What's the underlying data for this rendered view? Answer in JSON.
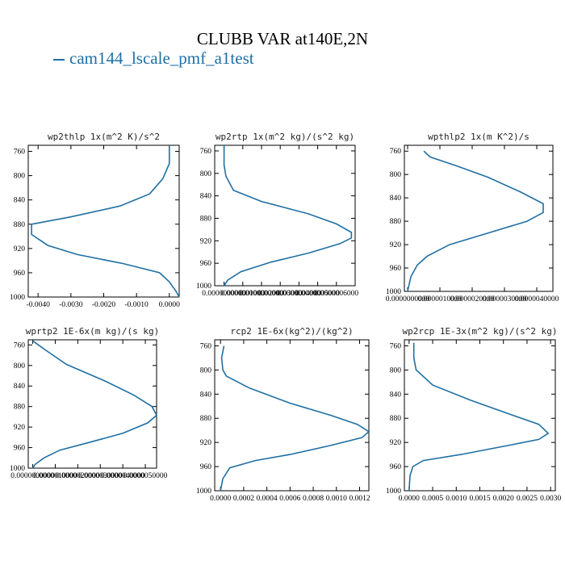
{
  "figure": {
    "title": "CLUBB VAR at140E,2N",
    "legend_label": "cam144_lscale_pmf_a1test",
    "series_color": "#1f6fa3"
  },
  "chart_data": [
    {
      "type": "line",
      "title": "wp2thlp  1x(m^2 K)/s^2",
      "xlim": [
        -0.0043,
        0.0003
      ],
      "ylim": [
        1000,
        750
      ],
      "xticks": [
        -0.004,
        -0.003,
        -0.002,
        -0.001,
        0.0
      ],
      "xtick_labels": [
        "-0.0040",
        "-0.0030",
        "-0.0020",
        "-0.0010",
        "0.0000"
      ],
      "yticks": [
        760,
        800,
        840,
        880,
        920,
        960,
        1000
      ],
      "ytick_labels": [
        "760",
        "800",
        "840",
        "880",
        "920",
        "960",
        "1000"
      ],
      "series": [
        {
          "x": [
            -0.0,
            -0.0,
            -0.0002,
            -0.0006,
            -0.0015,
            -0.003,
            -0.0042,
            -0.0042,
            -0.0037,
            -0.0028,
            -0.0014,
            -0.0003,
            0.0,
            0.0002,
            0.0003
          ],
          "y": [
            750,
            780,
            805,
            830,
            850,
            868,
            880,
            897,
            915,
            930,
            945,
            960,
            975,
            990,
            1000
          ]
        }
      ]
    },
    {
      "type": "line",
      "title": "wp2rtp  1x(m^2 kg)/(s^2 kg)",
      "xlim": [
        -5e-08,
        7e-07
      ],
      "ylim": [
        1000,
        750
      ],
      "xticks": [
        0.0,
        1e-07,
        2e-07,
        3e-07,
        4e-07,
        5e-07,
        6e-07
      ],
      "xtick_labels": [
        "0.0000000000",
        "0.0000001000",
        "0.0000002000",
        "0.0000003000",
        "0.0000004000",
        "0.0000005000",
        "0.0000006000"
      ],
      "yticks": [
        760,
        800,
        840,
        880,
        920,
        960,
        1000
      ],
      "ytick_labels": [
        "760",
        "800",
        "840",
        "880",
        "920",
        "960",
        "1000"
      ],
      "series": [
        {
          "x": [
            0.0,
            0.0,
            1e-08,
            5e-08,
            2e-07,
            4.5e-07,
            6e-07,
            6.8e-07,
            6.8e-07,
            6.2e-07,
            4.5e-07,
            2.5e-07,
            9e-08,
            2e-08,
            0.0
          ],
          "y": [
            750,
            785,
            805,
            830,
            850,
            872,
            890,
            905,
            915,
            925,
            942,
            958,
            975,
            990,
            1000
          ]
        }
      ]
    },
    {
      "type": "line",
      "title": "wpthlp2  1x(m K^2)/s",
      "xlim": [
        -1e-07,
        4.5e-06
      ],
      "ylim": [
        1000,
        750
      ],
      "xticks": [
        0.0,
        1e-06,
        2e-06,
        3e-06,
        4e-06
      ],
      "xtick_labels": [
        "0.0000000000",
        "0.0000010000",
        "0.0000020000",
        "0.0000030000",
        "0.0000040000"
      ],
      "yticks": [
        760,
        800,
        840,
        880,
        920,
        960,
        1000
      ],
      "ytick_labels": [
        "760",
        "800",
        "840",
        "880",
        "920",
        "960",
        "1000"
      ],
      "series": [
        {
          "x": [
            5e-07,
            7e-07,
            1.5e-06,
            2.5e-06,
            3.5e-06,
            4.2e-06,
            4.2e-06,
            3.7e-06,
            2.5e-06,
            1.3e-06,
            6e-07,
            3e-07,
            1e-07,
            0.0
          ],
          "y": [
            760,
            770,
            785,
            805,
            830,
            850,
            865,
            880,
            900,
            920,
            940,
            955,
            975,
            1000
          ]
        }
      ]
    },
    {
      "type": "line",
      "title": "wprtp2  1E-6x(m kg)/(s kg)",
      "xlim": [
        -2e-07,
        5.5e-06
      ],
      "ylim": [
        1000,
        750
      ],
      "xticks": [
        0.0,
        1e-06,
        2e-06,
        3e-06,
        4e-06,
        5e-06
      ],
      "xtick_labels": [
        "0.0000000000",
        "0.0000010000",
        "0.0000020000",
        "0.0000030000",
        "0.0000040000",
        "0.0000050000"
      ],
      "yticks": [
        760,
        800,
        840,
        880,
        920,
        960,
        1000
      ],
      "ytick_labels": [
        "760",
        "800",
        "840",
        "880",
        "920",
        "960",
        "1000"
      ],
      "series": [
        {
          "x": [
            0.0,
            5e-07,
            1.5e-06,
            3.2e-06,
            4.5e-06,
            5.3e-06,
            5.5e-06,
            5.1e-06,
            4e-06,
            2.5e-06,
            1.2e-06,
            5e-07,
            1e-07,
            0.0
          ],
          "y": [
            752,
            768,
            798,
            830,
            858,
            880,
            897,
            912,
            932,
            950,
            965,
            980,
            993,
            1000
          ]
        }
      ]
    },
    {
      "type": "line",
      "title": "rcp2  1E-6x(kg^2)/(kg^2)",
      "xlim": [
        -5e-05,
        0.00128
      ],
      "ylim": [
        1000,
        750
      ],
      "xticks": [
        0.0,
        0.0002,
        0.0004,
        0.0006,
        0.0008,
        0.001,
        0.0012
      ],
      "xtick_labels": [
        "0.0000",
        "0.0002",
        "0.0004",
        "0.0006",
        "0.0008",
        "0.0010",
        "0.0012"
      ],
      "yticks": [
        760,
        800,
        840,
        880,
        920,
        960,
        1000
      ],
      "ytick_labels": [
        "760",
        "800",
        "840",
        "880",
        "920",
        "960",
        "1000"
      ],
      "series": [
        {
          "x": [
            3e-05,
            1e-05,
            2e-05,
            5e-05,
            0.00025,
            0.0006,
            0.00095,
            0.00118,
            0.00128,
            0.00122,
            0.00095,
            0.0006,
            0.0003,
            8e-05,
            2e-05,
            0.0
          ],
          "y": [
            760,
            780,
            800,
            810,
            830,
            855,
            875,
            890,
            902,
            912,
            925,
            940,
            950,
            962,
            980,
            1000
          ]
        }
      ]
    },
    {
      "type": "line",
      "title": "wp2rcp  1E-3x(m^2 kg)/(s^2 kg)",
      "xlim": [
        -0.0001,
        0.0031
      ],
      "ylim": [
        1000,
        750
      ],
      "xticks": [
        0.0,
        0.0005,
        0.001,
        0.0015,
        0.002,
        0.0025,
        0.003
      ],
      "xtick_labels": [
        "0.0000",
        "0.0005",
        "0.0010",
        "0.0015",
        "0.0020",
        "0.0025",
        "0.0030"
      ],
      "yticks": [
        760,
        800,
        840,
        880,
        920,
        960,
        1000
      ],
      "ytick_labels": [
        "760",
        "800",
        "840",
        "880",
        "920",
        "960",
        "1000"
      ],
      "series": [
        {
          "x": [
            0.0001,
            0.0001,
            0.00015,
            0.0005,
            0.0013,
            0.0022,
            0.00275,
            0.00295,
            0.00275,
            0.0021,
            0.0011,
            0.0003,
            8e-05,
            2e-05,
            0.0
          ],
          "y": [
            755,
            780,
            800,
            825,
            850,
            875,
            890,
            905,
            915,
            925,
            940,
            950,
            960,
            975,
            1000
          ]
        }
      ]
    }
  ]
}
